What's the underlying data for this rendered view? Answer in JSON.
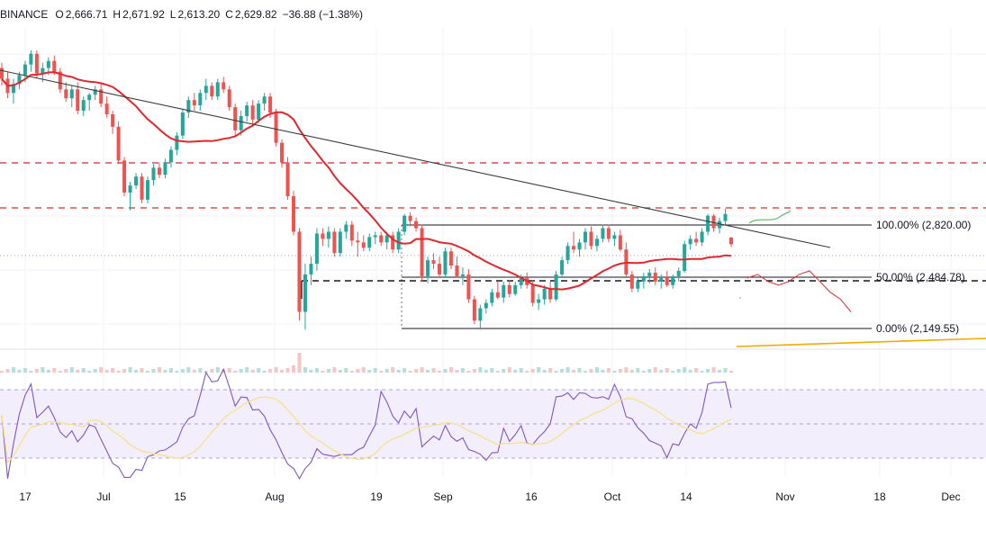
{
  "header": {
    "exchange": "BINANCE",
    "o_label": "O",
    "o_value": "2,666.71",
    "h_label": "H",
    "h_value": "2,671.92",
    "l_label": "L",
    "l_value": "2,613.20",
    "c_label": "C",
    "c_value": "2,629.82",
    "change": "−36.88 (−1.38%)"
  },
  "colors": {
    "up": "#26a69a",
    "down": "#ef5350",
    "ma": "#e0282e",
    "trend": "#3b3b3b",
    "rsi": "#7e57c2",
    "rsi_ma": "#f5e28a",
    "fib": "#131722",
    "horizontal_dashed": "#d32f2f",
    "support_long": "#f2a900",
    "projection": "#e0282e",
    "projection_green": "#4caf50"
  },
  "chart_data": [
    {
      "type": "candlestick",
      "xlabels": [
        "17",
        "Jul",
        "15",
        "Aug",
        "19",
        "Sep",
        "16",
        "Oct",
        "14",
        "Nov",
        "18",
        "Dec"
      ],
      "fib_levels": [
        {
          "label": "100.00% (2,820.00)",
          "value": 2820.0
        },
        {
          "label": "50.00% (2,484.78)",
          "value": 2484.78
        },
        {
          "label": "0.00% (2,149.55)",
          "value": 2149.55
        }
      ],
      "last_candle": {
        "open": 2666.71,
        "high": 2671.92,
        "low": 2613.2,
        "close": 2629.82
      },
      "ohlc": [
        [
          3620,
          3650,
          3520,
          3560
        ],
        [
          3560,
          3600,
          3450,
          3480
        ],
        [
          3480,
          3560,
          3420,
          3530
        ],
        [
          3530,
          3600,
          3500,
          3580
        ],
        [
          3580,
          3660,
          3540,
          3640
        ],
        [
          3640,
          3720,
          3600,
          3700
        ],
        [
          3700,
          3720,
          3560,
          3590
        ],
        [
          3590,
          3650,
          3540,
          3620
        ],
        [
          3620,
          3680,
          3580,
          3660
        ],
        [
          3660,
          3690,
          3580,
          3600
        ],
        [
          3600,
          3620,
          3480,
          3500
        ],
        [
          3500,
          3540,
          3430,
          3450
        ],
        [
          3450,
          3520,
          3400,
          3500
        ],
        [
          3500,
          3540,
          3360,
          3380
        ],
        [
          3380,
          3460,
          3350,
          3440
        ],
        [
          3440,
          3480,
          3380,
          3470
        ],
        [
          3470,
          3520,
          3440,
          3500
        ],
        [
          3500,
          3540,
          3400,
          3420
        ],
        [
          3420,
          3460,
          3340,
          3360
        ],
        [
          3360,
          3380,
          3250,
          3290
        ],
        [
          3290,
          3320,
          3080,
          3100
        ],
        [
          3100,
          3120,
          2900,
          2920
        ],
        [
          2920,
          2980,
          2820,
          2960
        ],
        [
          2960,
          3030,
          2940,
          3010
        ],
        [
          3010,
          3030,
          2860,
          2880
        ],
        [
          2880,
          3010,
          2860,
          2990
        ],
        [
          2990,
          3080,
          2960,
          3060
        ],
        [
          3060,
          3090,
          3000,
          3020
        ],
        [
          3020,
          3110,
          3000,
          3090
        ],
        [
          3090,
          3180,
          3060,
          3160
        ],
        [
          3160,
          3260,
          3130,
          3240
        ],
        [
          3240,
          3390,
          3220,
          3370
        ],
        [
          3370,
          3460,
          3340,
          3440
        ],
        [
          3440,
          3480,
          3380,
          3410
        ],
        [
          3410,
          3500,
          3380,
          3480
        ],
        [
          3480,
          3560,
          3440,
          3520
        ],
        [
          3520,
          3540,
          3440,
          3460
        ],
        [
          3460,
          3560,
          3440,
          3540
        ],
        [
          3540,
          3570,
          3480,
          3500
        ],
        [
          3500,
          3520,
          3380,
          3400
        ],
        [
          3400,
          3420,
          3240,
          3270
        ],
        [
          3270,
          3380,
          3240,
          3350
        ],
        [
          3350,
          3430,
          3320,
          3410
        ],
        [
          3410,
          3440,
          3300,
          3330
        ],
        [
          3330,
          3440,
          3310,
          3420
        ],
        [
          3420,
          3480,
          3380,
          3460
        ],
        [
          3460,
          3480,
          3340,
          3370
        ],
        [
          3370,
          3390,
          3180,
          3200
        ],
        [
          3200,
          3220,
          3060,
          3090
        ],
        [
          3090,
          3120,
          2880,
          2900
        ],
        [
          2900,
          2930,
          2680,
          2700
        ],
        [
          2700,
          2720,
          2200,
          2250
        ],
        [
          2250,
          2520,
          2150,
          2460
        ],
        [
          2460,
          2560,
          2400,
          2520
        ],
        [
          2520,
          2720,
          2480,
          2690
        ],
        [
          2690,
          2720,
          2620,
          2660
        ],
        [
          2660,
          2730,
          2610,
          2700
        ],
        [
          2700,
          2720,
          2560,
          2580
        ],
        [
          2580,
          2720,
          2560,
          2700
        ],
        [
          2700,
          2760,
          2660,
          2740
        ],
        [
          2740,
          2760,
          2620,
          2650
        ],
        [
          2650,
          2700,
          2560,
          2640
        ],
        [
          2640,
          2680,
          2590,
          2610
        ],
        [
          2610,
          2690,
          2590,
          2670
        ],
        [
          2670,
          2700,
          2630,
          2680
        ],
        [
          2680,
          2700,
          2620,
          2640
        ],
        [
          2640,
          2700,
          2600,
          2680
        ],
        [
          2680,
          2700,
          2580,
          2600
        ],
        [
          2600,
          2720,
          2580,
          2700
        ],
        [
          2700,
          2800,
          2680,
          2790
        ],
        [
          2790,
          2810,
          2730,
          2760
        ],
        [
          2760,
          2780,
          2700,
          2720
        ],
        [
          2720,
          2740,
          2420,
          2450
        ],
        [
          2450,
          2560,
          2410,
          2540
        ],
        [
          2540,
          2580,
          2490,
          2520
        ],
        [
          2520,
          2560,
          2440,
          2460
        ],
        [
          2460,
          2610,
          2440,
          2590
        ],
        [
          2590,
          2610,
          2490,
          2510
        ],
        [
          2510,
          2560,
          2440,
          2450
        ],
        [
          2450,
          2500,
          2400,
          2460
        ],
        [
          2460,
          2490,
          2300,
          2320
        ],
        [
          2320,
          2340,
          2180,
          2200
        ],
        [
          2200,
          2290,
          2150,
          2270
        ],
        [
          2270,
          2320,
          2240,
          2300
        ],
        [
          2300,
          2380,
          2280,
          2360
        ],
        [
          2360,
          2420,
          2320,
          2330
        ],
        [
          2330,
          2420,
          2300,
          2400
        ],
        [
          2400,
          2430,
          2330,
          2350
        ],
        [
          2350,
          2420,
          2340,
          2400
        ],
        [
          2400,
          2460,
          2380,
          2440
        ],
        [
          2440,
          2470,
          2380,
          2400
        ],
        [
          2400,
          2430,
          2280,
          2300
        ],
        [
          2300,
          2350,
          2260,
          2320
        ],
        [
          2320,
          2400,
          2290,
          2380
        ],
        [
          2380,
          2420,
          2300,
          2320
        ],
        [
          2320,
          2480,
          2310,
          2460
        ],
        [
          2460,
          2560,
          2440,
          2540
        ],
        [
          2540,
          2640,
          2520,
          2620
        ],
        [
          2620,
          2700,
          2580,
          2600
        ],
        [
          2600,
          2660,
          2560,
          2640
        ],
        [
          2640,
          2720,
          2600,
          2700
        ],
        [
          2700,
          2730,
          2600,
          2620
        ],
        [
          2620,
          2680,
          2590,
          2660
        ],
        [
          2660,
          2740,
          2640,
          2720
        ],
        [
          2720,
          2740,
          2640,
          2660
        ],
        [
          2660,
          2700,
          2620,
          2680
        ],
        [
          2680,
          2710,
          2590,
          2600
        ],
        [
          2600,
          2640,
          2440,
          2460
        ],
        [
          2460,
          2480,
          2360,
          2380
        ],
        [
          2380,
          2440,
          2360,
          2420
        ],
        [
          2420,
          2470,
          2380,
          2450
        ],
        [
          2450,
          2490,
          2410,
          2470
        ],
        [
          2470,
          2500,
          2400,
          2420
        ],
        [
          2420,
          2460,
          2380,
          2440
        ],
        [
          2440,
          2480,
          2390,
          2400
        ],
        [
          2400,
          2460,
          2380,
          2450
        ],
        [
          2450,
          2500,
          2420,
          2480
        ],
        [
          2480,
          2650,
          2470,
          2630
        ],
        [
          2630,
          2680,
          2600,
          2660
        ],
        [
          2660,
          2700,
          2620,
          2640
        ],
        [
          2640,
          2720,
          2620,
          2700
        ],
        [
          2700,
          2800,
          2680,
          2790
        ],
        [
          2790,
          2800,
          2700,
          2720
        ],
        [
          2720,
          2780,
          2690,
          2760
        ],
        [
          2760,
          2830,
          2740,
          2800
        ],
        [
          2666.71,
          2671.92,
          2613.2,
          2629.82
        ]
      ],
      "projection": [
        2440,
        2460,
        2420,
        2400,
        2420,
        2460,
        2480,
        2420,
        2360,
        2320,
        2250
      ]
    }
  ]
}
